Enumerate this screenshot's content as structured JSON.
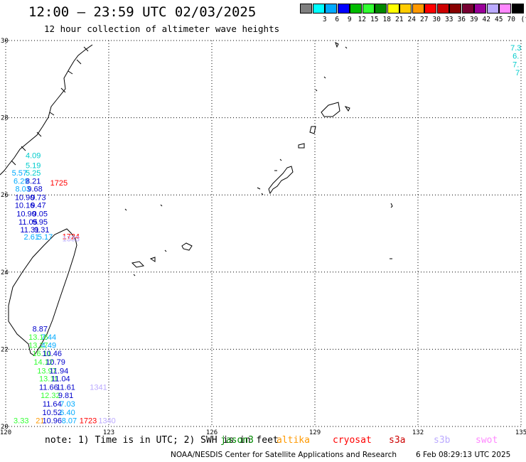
{
  "title": "12:00 — 23:59 UTC 02/03/2025",
  "subtitle": "12 hour collection of altimeter wave heights",
  "scale": {
    "unit": "(ft)",
    "bins": [
      {
        "label": "",
        "color": "#7f7f7f"
      },
      {
        "label": "3",
        "color": "#00ffff"
      },
      {
        "label": "6",
        "color": "#00aaff"
      },
      {
        "label": "9",
        "color": "#0000ff"
      },
      {
        "label": "12",
        "color": "#00bb00"
      },
      {
        "label": "15",
        "color": "#33ff33"
      },
      {
        "label": "18",
        "color": "#008800"
      },
      {
        "label": "21",
        "color": "#ffff00"
      },
      {
        "label": "24",
        "color": "#ffcc00"
      },
      {
        "label": "27",
        "color": "#ff9900"
      },
      {
        "label": "30",
        "color": "#ff0000"
      },
      {
        "label": "33",
        "color": "#cc0000"
      },
      {
        "label": "36",
        "color": "#880000"
      },
      {
        "label": "39",
        "color": "#770033"
      },
      {
        "label": "42",
        "color": "#990099"
      },
      {
        "label": "45",
        "color": "#bbaaff"
      },
      {
        "label": "70",
        "color": "#ff88ff"
      },
      {
        "label": "",
        "color": "#000000"
      }
    ]
  },
  "map": {
    "lon_range": [
      120,
      135
    ],
    "lat_range": [
      20,
      30
    ],
    "lon_ticks": [
      {
        "value": 120,
        "label": "120"
      },
      {
        "value": 123,
        "label": "123"
      },
      {
        "value": 126,
        "label": "126"
      },
      {
        "value": 129,
        "label": "129"
      },
      {
        "value": 132,
        "label": "132"
      },
      {
        "value": 135,
        "label": "135"
      }
    ],
    "lat_ticks": [
      {
        "value": 20,
        "label": "20"
      },
      {
        "value": 22,
        "label": "22"
      },
      {
        "value": 24,
        "label": "24"
      },
      {
        "value": 26,
        "label": "26"
      },
      {
        "value": 28,
        "label": "28"
      },
      {
        "value": 30,
        "label": "30"
      }
    ],
    "observations": [
      {
        "lon": 120.8,
        "lat": 27.03,
        "text": "4.09",
        "color": "#00cccc"
      },
      {
        "lon": 120.8,
        "lat": 26.77,
        "text": "5.19",
        "color": "#00cccc"
      },
      {
        "lon": 120.4,
        "lat": 26.57,
        "text": "5.57",
        "color": "#00aaff"
      },
      {
        "lon": 120.8,
        "lat": 26.57,
        "text": "5.25",
        "color": "#00cccc"
      },
      {
        "lon": 120.45,
        "lat": 26.36,
        "text": "6.29",
        "color": "#00aaff"
      },
      {
        "lon": 120.8,
        "lat": 26.36,
        "text": "8.21",
        "color": "#0000cc"
      },
      {
        "lon": 121.55,
        "lat": 26.32,
        "text": "1725",
        "color": "#ff0000"
      },
      {
        "lon": 120.5,
        "lat": 26.16,
        "text": "8.03",
        "color": "#00aaff"
      },
      {
        "lon": 120.85,
        "lat": 26.16,
        "text": "9.68",
        "color": "#0000cc"
      },
      {
        "lon": 120.55,
        "lat": 25.94,
        "text": "10.90",
        "color": "#0000cc"
      },
      {
        "lon": 120.95,
        "lat": 25.94,
        "text": "9.73",
        "color": "#0000cc"
      },
      {
        "lon": 120.55,
        "lat": 25.74,
        "text": "10.16",
        "color": "#0000cc"
      },
      {
        "lon": 120.95,
        "lat": 25.74,
        "text": "9.47",
        "color": "#0000cc"
      },
      {
        "lon": 120.6,
        "lat": 25.52,
        "text": "10.90",
        "color": "#0000cc"
      },
      {
        "lon": 121.0,
        "lat": 25.52,
        "text": "9.05",
        "color": "#0000cc"
      },
      {
        "lon": 120.65,
        "lat": 25.3,
        "text": "11.05",
        "color": "#0000cc"
      },
      {
        "lon": 121.0,
        "lat": 25.3,
        "text": "9.95",
        "color": "#0000cc"
      },
      {
        "lon": 120.7,
        "lat": 25.1,
        "text": "11.31",
        "color": "#0000cc"
      },
      {
        "lon": 121.05,
        "lat": 25.1,
        "text": "9.31",
        "color": "#0000cc"
      },
      {
        "lon": 120.75,
        "lat": 24.92,
        "text": "2.61",
        "color": "#00aaff"
      },
      {
        "lon": 121.15,
        "lat": 24.92,
        "text": "5.17",
        "color": "#00aaff"
      },
      {
        "lon": 121.9,
        "lat": 24.93,
        "text": "1724",
        "color": "#ff0000"
      },
      {
        "lon": 121.9,
        "lat": 24.87,
        "text": "1333",
        "color": "#bbaaff"
      },
      {
        "lon": 121.0,
        "lat": 22.53,
        "text": "8.87",
        "color": "#0000cc"
      },
      {
        "lon": 120.95,
        "lat": 22.32,
        "text": "13.16",
        "color": "#33ff33"
      },
      {
        "lon": 121.25,
        "lat": 22.32,
        "text": "7.44",
        "color": "#00aaff"
      },
      {
        "lon": 120.95,
        "lat": 22.11,
        "text": "13.27",
        "color": "#33ff33"
      },
      {
        "lon": 121.25,
        "lat": 22.11,
        "text": "4.49",
        "color": "#00aaff"
      },
      {
        "lon": 121.05,
        "lat": 21.9,
        "text": "16.11",
        "color": "#33ff33"
      },
      {
        "lon": 121.35,
        "lat": 21.9,
        "text": "10.46",
        "color": "#0000cc"
      },
      {
        "lon": 121.1,
        "lat": 21.68,
        "text": "14.12",
        "color": "#33ff33"
      },
      {
        "lon": 121.45,
        "lat": 21.68,
        "text": "10.79",
        "color": "#0000cc"
      },
      {
        "lon": 121.2,
        "lat": 21.45,
        "text": "13.97",
        "color": "#33ff33"
      },
      {
        "lon": 121.55,
        "lat": 21.45,
        "text": "11.94",
        "color": "#0000cc"
      },
      {
        "lon": 121.25,
        "lat": 21.24,
        "text": "13.11",
        "color": "#33ff33"
      },
      {
        "lon": 121.6,
        "lat": 21.24,
        "text": "11.04",
        "color": "#0000cc"
      },
      {
        "lon": 121.25,
        "lat": 21.02,
        "text": "11.66",
        "color": "#0000cc"
      },
      {
        "lon": 121.75,
        "lat": 21.02,
        "text": "11.61",
        "color": "#0000cc"
      },
      {
        "lon": 122.7,
        "lat": 21.02,
        "text": "1341",
        "color": "#bbaaff"
      },
      {
        "lon": 121.3,
        "lat": 20.81,
        "text": "12.32",
        "color": "#33ff33"
      },
      {
        "lon": 121.75,
        "lat": 20.81,
        "text": "9.81",
        "color": "#0000cc"
      },
      {
        "lon": 121.35,
        "lat": 20.59,
        "text": "11.64",
        "color": "#0000cc"
      },
      {
        "lon": 121.8,
        "lat": 20.59,
        "text": "7.03",
        "color": "#00aaff"
      },
      {
        "lon": 121.35,
        "lat": 20.37,
        "text": "10.52",
        "color": "#0000cc"
      },
      {
        "lon": 121.8,
        "lat": 20.37,
        "text": "6.40",
        "color": "#00aaff"
      },
      {
        "lon": 120.45,
        "lat": 20.16,
        "text": "3.33",
        "color": "#33ff33"
      },
      {
        "lon": 121.0,
        "lat": 20.16,
        "text": "21",
        "color": "#ff9900"
      },
      {
        "lon": 121.35,
        "lat": 20.16,
        "text": "10.96",
        "color": "#0000cc"
      },
      {
        "lon": 121.85,
        "lat": 20.16,
        "text": "8.07",
        "color": "#00aaff"
      },
      {
        "lon": 122.4,
        "lat": 20.16,
        "text": "1723",
        "color": "#ff0000"
      },
      {
        "lon": 122.95,
        "lat": 20.16,
        "text": "1340",
        "color": "#bbaaff"
      },
      {
        "lon": 134.85,
        "lat": 29.82,
        "text": "7.3",
        "color": "#00cccc"
      },
      {
        "lon": 134.85,
        "lat": 29.6,
        "text": "6.",
        "color": "#00cccc"
      },
      {
        "lon": 134.85,
        "lat": 29.38,
        "text": "7.",
        "color": "#00cccc"
      },
      {
        "lon": 134.9,
        "lat": 29.17,
        "text": "7",
        "color": "#00cccc"
      }
    ]
  },
  "note": "note: 1) Time is in UTC; 2) SWH is in feet",
  "satellites": [
    {
      "name": "jason3",
      "color": "#008800"
    },
    {
      "name": "altika",
      "color": "#ff9900"
    },
    {
      "name": "cryosat",
      "color": "#ff0000"
    },
    {
      "name": "s3a",
      "color": "#cc0000"
    },
    {
      "name": "s3b",
      "color": "#bbaaff"
    },
    {
      "name": "swot",
      "color": "#ff88ff"
    }
  ],
  "credit": "NOAA/NESDIS Center for Satellite Applications and Research",
  "credit_time": "6 Feb 08:29:13 UTC 2025"
}
